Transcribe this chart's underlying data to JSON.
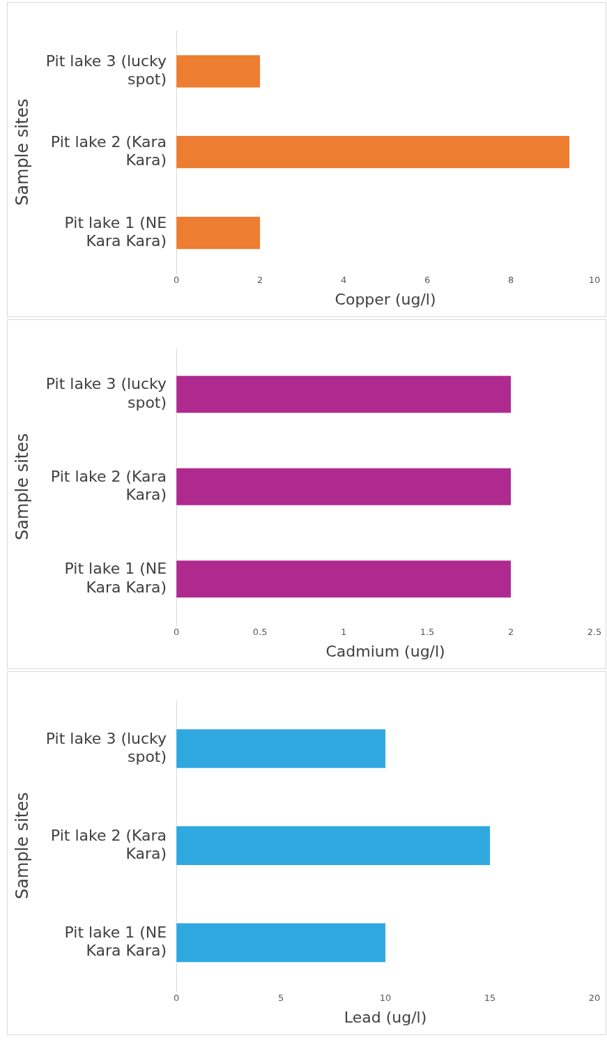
{
  "chart_data": [
    {
      "type": "bar",
      "orientation": "horizontal",
      "categories": [
        "Pit lake 3 (lucky spot)",
        "Pit lake 2 (Kara Kara)",
        "Pit lake 1 (NE Kara Kara)"
      ],
      "values": [
        2,
        9.4,
        2
      ],
      "color": "#ed7d31",
      "xlabel": "Copper (ug/l)",
      "ylabel": "Sample sites",
      "xlim": [
        0,
        10
      ],
      "xticks": [
        0,
        2,
        4,
        6,
        8,
        10
      ],
      "grid": false
    },
    {
      "type": "bar",
      "orientation": "horizontal",
      "categories": [
        "Pit lake 3 (lucky spot)",
        "Pit lake 2 (Kara Kara)",
        "Pit lake 1 (NE Kara Kara)"
      ],
      "values": [
        2,
        2,
        2
      ],
      "color": "#ae2a8f",
      "xlabel": "Cadmium (ug/l)",
      "ylabel": "Sample sites",
      "xlim": [
        0,
        2.5
      ],
      "xticks": [
        0,
        0.5,
        1,
        1.5,
        2,
        2.5
      ],
      "grid": false
    },
    {
      "type": "bar",
      "orientation": "horizontal",
      "categories": [
        "Pit lake 3 (lucky spot)",
        "Pit lake 2 (Kara Kara)",
        "Pit lake 1 (NE Kara Kara)"
      ],
      "values": [
        10,
        15,
        10
      ],
      "color": "#2fa8e0",
      "xlabel": "Lead (ug/l)",
      "ylabel": "Sample sites",
      "xlim": [
        0,
        20
      ],
      "xticks": [
        0,
        5,
        10,
        15,
        20
      ],
      "grid": false
    }
  ]
}
